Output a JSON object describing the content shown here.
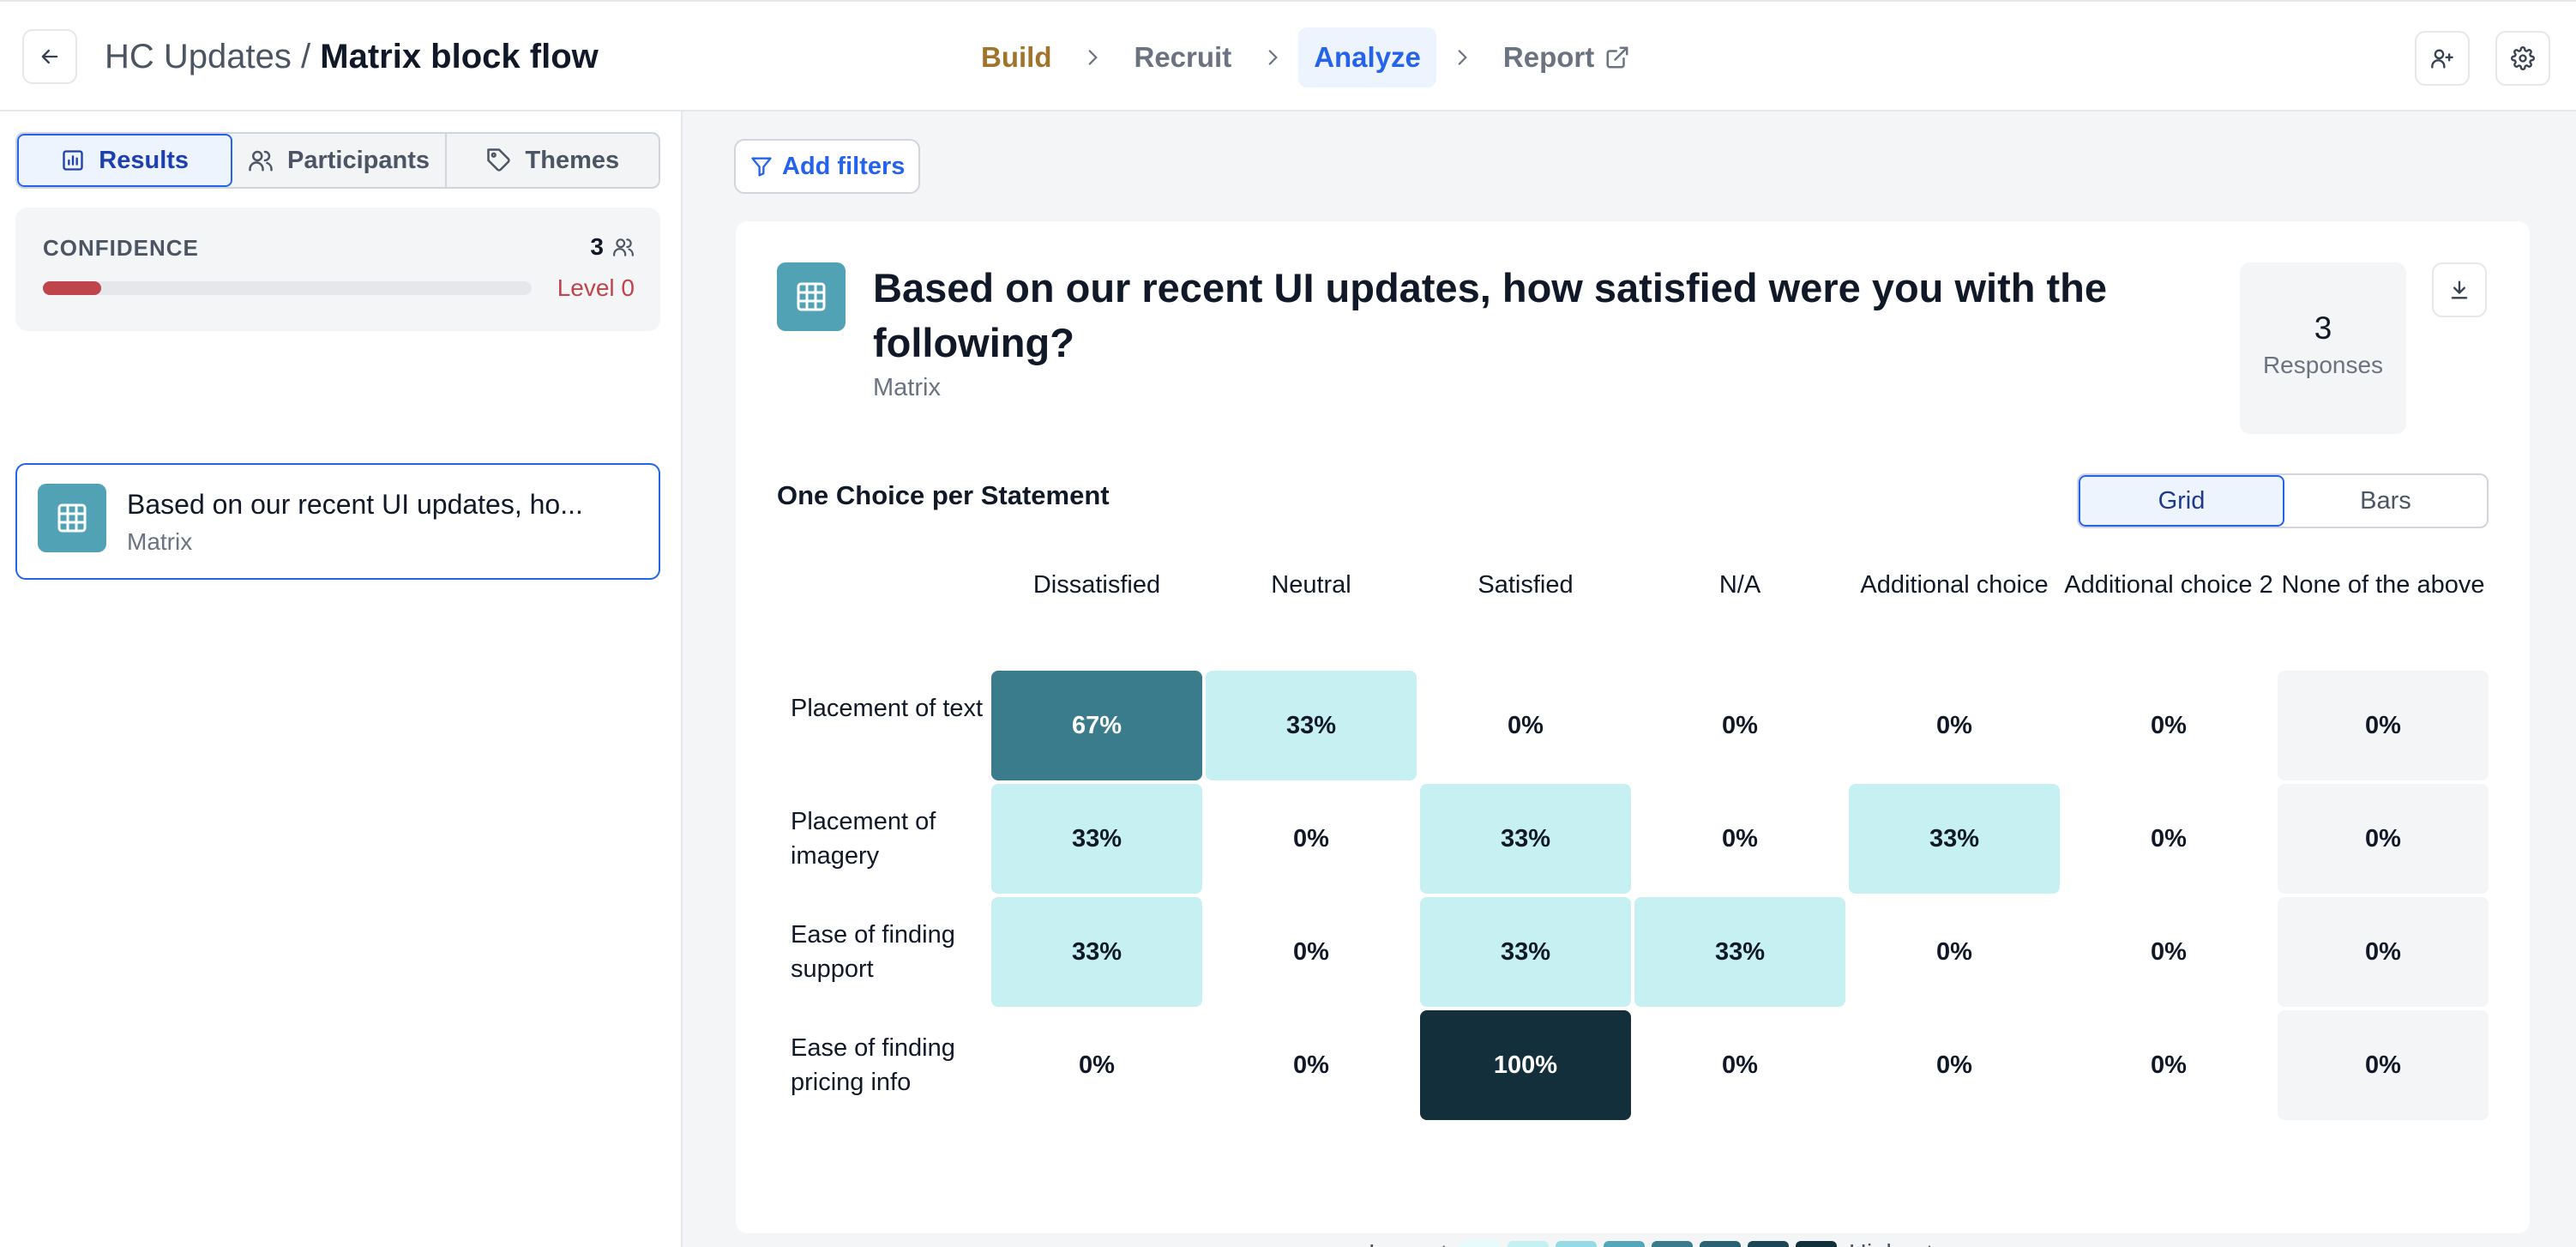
{
  "header": {
    "project": "HC Updates",
    "separator": "/",
    "flow": "Matrix block flow",
    "steps": [
      {
        "label": "Build"
      },
      {
        "label": "Recruit"
      },
      {
        "label": "Analyze"
      },
      {
        "label": "Report"
      }
    ],
    "active_step": "Analyze",
    "icons": [
      "arrow-left-icon",
      "chevron-right-icon",
      "external-link-icon",
      "user-plus-icon",
      "gear-icon"
    ]
  },
  "sidebar": {
    "tabs": [
      {
        "label": "Results",
        "icon": "bar-chart-icon",
        "active": true
      },
      {
        "label": "Participants",
        "icon": "users-icon",
        "active": false
      },
      {
        "label": "Themes",
        "icon": "tag-icon",
        "active": false
      }
    ],
    "confidence": {
      "label": "CONFIDENCE",
      "count": "3",
      "level": "Level 0",
      "progress": 0.12,
      "color": "#c0444b"
    },
    "question": {
      "text": "Based on our recent UI updates, ho...",
      "type": "Matrix"
    }
  },
  "main": {
    "filters_label": "Add filters",
    "question_title": "Based on our recent UI updates, how satisfied were you with the following?",
    "question_type": "Matrix",
    "responses_count": "3",
    "responses_label": "Responses",
    "section_title": "One Choice per Statement",
    "view_options": [
      "Grid",
      "Bars"
    ],
    "active_view": "Grid",
    "legend": {
      "low": "Lowest",
      "high": "Highest"
    },
    "colors": {
      "accent": "#2563eb",
      "teal_icon": "#52a2b5",
      "scale": [
        "#e6fbfb",
        "#c6f0f1",
        "#96dbe3",
        "#54a7b8",
        "#3b7c8c",
        "#2a6272",
        "#1c4654",
        "#132f3b"
      ]
    }
  },
  "chart_data": {
    "type": "heatmap",
    "columns": [
      "Dissatisfied",
      "Neutral",
      "Satisfied",
      "N/A",
      "Additional choice",
      "Additional choice 2",
      "None of the above"
    ],
    "rows": [
      "Placement of text",
      "Placement of imagery",
      "Ease of finding support",
      "Ease of finding pricing info"
    ],
    "values": [
      [
        67,
        33,
        0,
        0,
        0,
        0,
        0
      ],
      [
        33,
        0,
        33,
        0,
        33,
        0,
        0
      ],
      [
        33,
        0,
        33,
        33,
        0,
        0,
        0
      ],
      [
        0,
        0,
        100,
        0,
        0,
        0,
        0
      ]
    ],
    "labels": [
      [
        "67%",
        "33%",
        "0%",
        "0%",
        "0%",
        "0%",
        "0%"
      ],
      [
        "33%",
        "0%",
        "33%",
        "0%",
        "33%",
        "0%",
        "0%"
      ],
      [
        "33%",
        "0%",
        "33%",
        "33%",
        "0%",
        "0%",
        "0%"
      ],
      [
        "0%",
        "0%",
        "100%",
        "0%",
        "0%",
        "0%",
        "0%"
      ]
    ],
    "unit": "%"
  }
}
